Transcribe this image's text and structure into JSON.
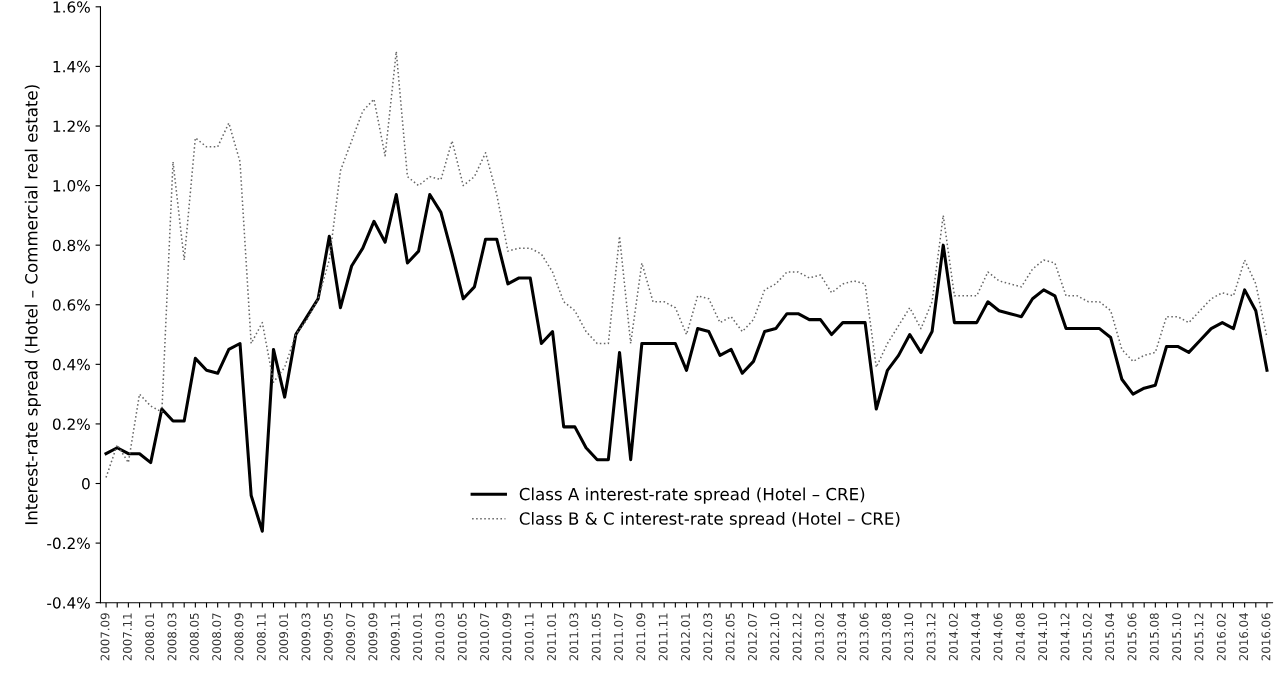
{
  "chart_data": {
    "type": "line",
    "ylabel": "Interest-rate spread (Hotel – Commercial real estate)",
    "categories": [
      "2007.09",
      null,
      "2007.11",
      null,
      "2008.01",
      null,
      "2008.03",
      null,
      "2008.05",
      null,
      "2008.07",
      null,
      "2008.09",
      null,
      "2008.11",
      null,
      "2009.01",
      null,
      "2009.03",
      null,
      "2009.05",
      null,
      "2009.07",
      null,
      "2009.09",
      null,
      "2009.11",
      null,
      "2010.01",
      null,
      "2010.03",
      null,
      "2010.05",
      null,
      "2010.07",
      null,
      "2010.09",
      null,
      "2010.11",
      null,
      "2011.01",
      null,
      "2011.03",
      null,
      "2011.05",
      null,
      "2011.07",
      null,
      "2011.09",
      null,
      "2011.11",
      null,
      "2012.01",
      null,
      "2012.03",
      null,
      "2012.05",
      null,
      "2012.07",
      null,
      "2012.10",
      null,
      "2012.12",
      null,
      "2013.02",
      null,
      "2013.04",
      null,
      "2013.06",
      null,
      "2013.08",
      null,
      "2013.10",
      null,
      "2013.12",
      null,
      "2014.02",
      null,
      "2014.04",
      null,
      "2014.06",
      null,
      "2014.08",
      null,
      "2014.10",
      null,
      "2014.12",
      null,
      "2015.02",
      null,
      "2015.04",
      null,
      "2015.06",
      null,
      "2015.08",
      null,
      "2015.10",
      null,
      "2015.12",
      null,
      "2016.02",
      null,
      "2016.04",
      null,
      "2016.06"
    ],
    "series": [
      {
        "name": "Class A interest-rate spread (Hotel – CRE)",
        "color": "#000000",
        "line_style": "solid",
        "values": [
          0.1,
          0.12,
          0.1,
          0.1,
          0.07,
          0.25,
          0.21,
          0.21,
          0.42,
          0.38,
          0.37,
          0.45,
          0.47,
          -0.04,
          -0.16,
          0.45,
          0.29,
          0.5,
          0.56,
          0.62,
          0.83,
          0.59,
          0.73,
          0.79,
          0.88,
          0.81,
          0.97,
          0.74,
          0.78,
          0.97,
          0.91,
          0.77,
          0.62,
          0.66,
          0.82,
          0.82,
          0.67,
          0.69,
          0.69,
          0.47,
          0.51,
          0.19,
          0.19,
          0.12,
          0.08,
          0.08,
          0.44,
          0.08,
          0.47,
          0.47,
          0.47,
          0.47,
          0.38,
          0.52,
          0.51,
          0.43,
          0.45,
          0.37,
          0.41,
          0.51,
          0.52,
          0.57,
          0.57,
          0.55,
          0.55,
          0.5,
          0.54,
          0.54,
          0.54,
          0.25,
          0.38,
          0.43,
          0.5,
          0.44,
          0.51,
          0.8,
          0.54,
          0.54,
          0.54,
          0.61,
          0.58,
          0.57,
          0.56,
          0.62,
          0.65,
          0.63,
          0.52,
          0.52,
          0.52,
          0.52,
          0.49,
          0.35,
          0.3,
          0.32,
          0.33,
          0.46,
          0.46,
          0.44,
          0.48,
          0.52,
          0.54,
          0.52,
          0.65,
          0.58,
          0.38
        ]
      },
      {
        "name": "Class B & C interest-rate spread (Hotel – CRE)",
        "color": "#666666",
        "line_style": "dotted",
        "values": [
          0.02,
          0.13,
          0.07,
          0.3,
          0.26,
          0.24,
          1.08,
          0.75,
          1.16,
          1.13,
          1.13,
          1.21,
          1.08,
          0.47,
          0.54,
          0.34,
          0.39,
          0.5,
          0.55,
          0.62,
          0.75,
          1.05,
          1.15,
          1.25,
          1.29,
          1.1,
          1.45,
          1.03,
          1.0,
          1.03,
          1.02,
          1.15,
          1.0,
          1.03,
          1.11,
          0.97,
          0.78,
          0.79,
          0.79,
          0.77,
          0.71,
          0.61,
          0.58,
          0.51,
          0.47,
          0.47,
          0.83,
          0.47,
          0.74,
          0.61,
          0.61,
          0.59,
          0.5,
          0.63,
          0.62,
          0.54,
          0.56,
          0.51,
          0.55,
          0.65,
          0.67,
          0.71,
          0.71,
          0.69,
          0.7,
          0.64,
          0.67,
          0.68,
          0.67,
          0.39,
          0.47,
          0.53,
          0.59,
          0.52,
          0.61,
          0.9,
          0.63,
          0.63,
          0.63,
          0.71,
          0.68,
          0.67,
          0.66,
          0.72,
          0.75,
          0.74,
          0.63,
          0.63,
          0.61,
          0.61,
          0.58,
          0.45,
          0.41,
          0.43,
          0.44,
          0.56,
          0.56,
          0.54,
          0.58,
          0.62,
          0.64,
          0.63,
          0.75,
          0.67,
          0.49
        ]
      }
    ],
    "ylim": [
      -0.4,
      1.6
    ],
    "yticks": [
      {
        "value": -0.4,
        "label": "-0.4%"
      },
      {
        "value": -0.2,
        "label": "-0.2%"
      },
      0,
      {
        "value": 0.2,
        "label": "0.2%"
      },
      {
        "value": 0.4,
        "label": "0.4%"
      },
      {
        "value": 0.6,
        "label": "0.6%"
      },
      {
        "value": 0.8,
        "label": "0.8%"
      },
      {
        "value": 1.0,
        "label": "1.0%"
      },
      {
        "value": 1.2,
        "label": "1.2%"
      },
      {
        "value": 1.4,
        "label": "1.4%"
      },
      {
        "value": 1.6,
        "label": "1.6%"
      }
    ],
    "grid": false,
    "legend": "bottom",
    "marker": "none"
  }
}
